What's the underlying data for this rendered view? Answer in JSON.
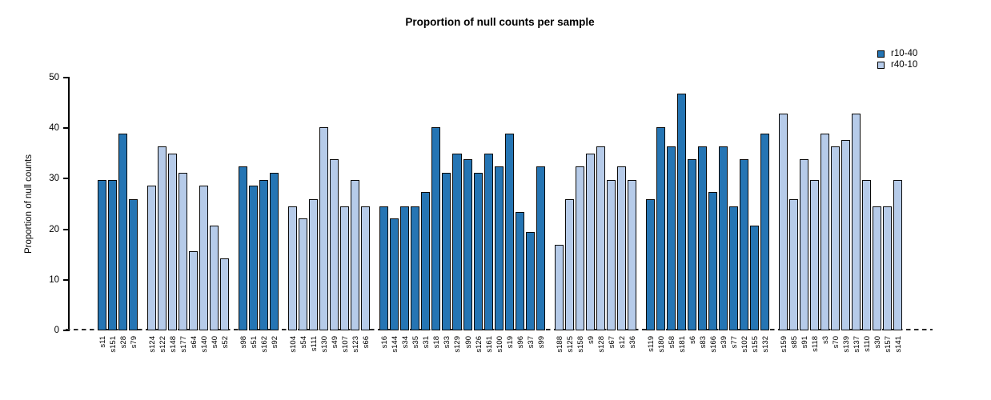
{
  "chart_data": {
    "type": "bar",
    "title": "Proportion of null counts per sample",
    "xlabel": "",
    "ylabel": "Proportion of null counts",
    "ylim": [
      0,
      50
    ],
    "yticks": [
      0,
      10,
      20,
      30,
      40,
      50
    ],
    "grid": false,
    "legend_position": "top-right",
    "zero_line_style": "dashed",
    "series": [
      {
        "name": "r10-40",
        "color": "#2575b4"
      },
      {
        "name": "r40-10",
        "color": "#b6cbe9"
      }
    ],
    "bars": [
      {
        "sample": "s11",
        "series": "r10-40",
        "value": 29.8
      },
      {
        "sample": "s151",
        "series": "r10-40",
        "value": 29.8
      },
      {
        "sample": "s28",
        "series": "r10-40",
        "value": 39.0
      },
      {
        "sample": "s79",
        "series": "r10-40",
        "value": 26.0
      },
      {
        "sample": "s124",
        "series": "r40-10",
        "value": 28.6
      },
      {
        "sample": "s122",
        "series": "r40-10",
        "value": 36.4
      },
      {
        "sample": "s148",
        "series": "r40-10",
        "value": 35.0
      },
      {
        "sample": "s177",
        "series": "r40-10",
        "value": 31.2
      },
      {
        "sample": "s64",
        "series": "r40-10",
        "value": 15.6
      },
      {
        "sample": "s140",
        "series": "r40-10",
        "value": 28.6
      },
      {
        "sample": "s40",
        "series": "r40-10",
        "value": 20.8
      },
      {
        "sample": "s52",
        "series": "r40-10",
        "value": 14.3
      },
      {
        "sample": "s98",
        "series": "r10-40",
        "value": 32.5
      },
      {
        "sample": "s51",
        "series": "r10-40",
        "value": 28.6
      },
      {
        "sample": "s162",
        "series": "r10-40",
        "value": 29.8
      },
      {
        "sample": "s92",
        "series": "r10-40",
        "value": 31.2
      },
      {
        "sample": "s104",
        "series": "r40-10",
        "value": 24.5
      },
      {
        "sample": "s54",
        "series": "r40-10",
        "value": 22.1
      },
      {
        "sample": "s111",
        "series": "r40-10",
        "value": 26.0
      },
      {
        "sample": "s130",
        "series": "r40-10",
        "value": 40.2
      },
      {
        "sample": "s49",
        "series": "r40-10",
        "value": 33.8
      },
      {
        "sample": "s107",
        "series": "r40-10",
        "value": 24.5
      },
      {
        "sample": "s123",
        "series": "r40-10",
        "value": 29.8
      },
      {
        "sample": "s66",
        "series": "r40-10",
        "value": 24.5
      },
      {
        "sample": "s16",
        "series": "r10-40",
        "value": 24.5
      },
      {
        "sample": "s144",
        "series": "r10-40",
        "value": 22.1
      },
      {
        "sample": "s34",
        "series": "r10-40",
        "value": 24.5
      },
      {
        "sample": "s35",
        "series": "r10-40",
        "value": 24.5
      },
      {
        "sample": "s31",
        "series": "r10-40",
        "value": 27.3
      },
      {
        "sample": "s18",
        "series": "r10-40",
        "value": 40.2
      },
      {
        "sample": "s33",
        "series": "r10-40",
        "value": 31.2
      },
      {
        "sample": "s129",
        "series": "r10-40",
        "value": 35.0
      },
      {
        "sample": "s90",
        "series": "r10-40",
        "value": 33.8
      },
      {
        "sample": "s126",
        "series": "r10-40",
        "value": 31.2
      },
      {
        "sample": "s161",
        "series": "r10-40",
        "value": 35.0
      },
      {
        "sample": "s100",
        "series": "r10-40",
        "value": 32.5
      },
      {
        "sample": "s19",
        "series": "r10-40",
        "value": 39.0
      },
      {
        "sample": "s96",
        "series": "r10-40",
        "value": 23.4
      },
      {
        "sample": "s37",
        "series": "r10-40",
        "value": 19.5
      },
      {
        "sample": "s99",
        "series": "r10-40",
        "value": 32.5
      },
      {
        "sample": "s188",
        "series": "r40-10",
        "value": 16.9
      },
      {
        "sample": "s125",
        "series": "r40-10",
        "value": 26.0
      },
      {
        "sample": "s158",
        "series": "r40-10",
        "value": 32.5
      },
      {
        "sample": "s9",
        "series": "r40-10",
        "value": 35.0
      },
      {
        "sample": "s128",
        "series": "r40-10",
        "value": 36.4
      },
      {
        "sample": "s67",
        "series": "r40-10",
        "value": 29.8
      },
      {
        "sample": "s12",
        "series": "r40-10",
        "value": 32.5
      },
      {
        "sample": "s36",
        "series": "r40-10",
        "value": 29.8
      },
      {
        "sample": "s119",
        "series": "r10-40",
        "value": 26.0
      },
      {
        "sample": "s180",
        "series": "r10-40",
        "value": 40.2
      },
      {
        "sample": "s58",
        "series": "r10-40",
        "value": 36.4
      },
      {
        "sample": "s181",
        "series": "r10-40",
        "value": 46.8
      },
      {
        "sample": "s6",
        "series": "r10-40",
        "value": 33.8
      },
      {
        "sample": "s83",
        "series": "r10-40",
        "value": 36.4
      },
      {
        "sample": "s166",
        "series": "r10-40",
        "value": 27.3
      },
      {
        "sample": "s39",
        "series": "r10-40",
        "value": 36.4
      },
      {
        "sample": "s77",
        "series": "r10-40",
        "value": 24.5
      },
      {
        "sample": "s102",
        "series": "r10-40",
        "value": 33.8
      },
      {
        "sample": "s155",
        "series": "r10-40",
        "value": 20.8
      },
      {
        "sample": "s132",
        "series": "r10-40",
        "value": 39.0
      },
      {
        "sample": "s159",
        "series": "r40-10",
        "value": 42.9
      },
      {
        "sample": "s85",
        "series": "r40-10",
        "value": 26.0
      },
      {
        "sample": "s91",
        "series": "r40-10",
        "value": 33.8
      },
      {
        "sample": "s118",
        "series": "r40-10",
        "value": 29.8
      },
      {
        "sample": "s3",
        "series": "r40-10",
        "value": 39.0
      },
      {
        "sample": "s70",
        "series": "r40-10",
        "value": 36.4
      },
      {
        "sample": "s139",
        "series": "r40-10",
        "value": 37.6
      },
      {
        "sample": "s137",
        "series": "r40-10",
        "value": 42.9
      },
      {
        "sample": "s110",
        "series": "r40-10",
        "value": 29.8
      },
      {
        "sample": "s30",
        "series": "r40-10",
        "value": 24.5
      },
      {
        "sample": "s157",
        "series": "r40-10",
        "value": 24.5
      },
      {
        "sample": "s141",
        "series": "r40-10",
        "value": 29.8
      }
    ]
  }
}
